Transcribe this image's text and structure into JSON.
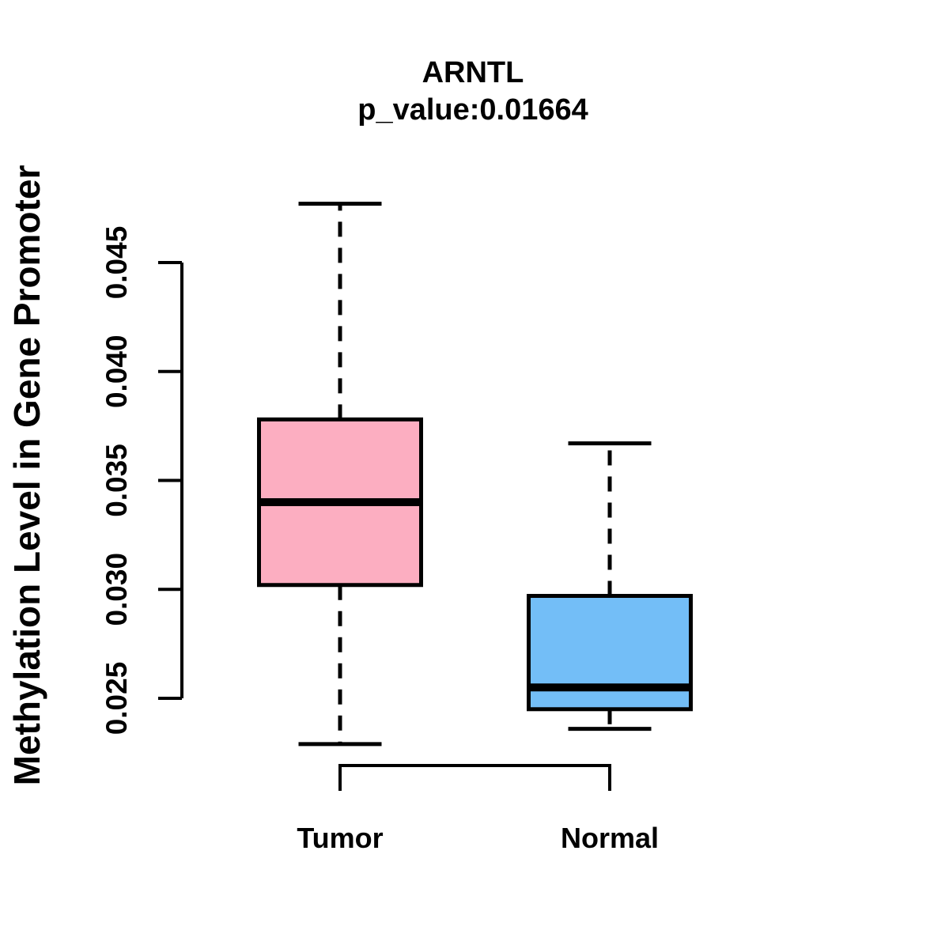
{
  "page": {
    "background": "#FFFFFF",
    "text_color": "#000000"
  },
  "chart_data": {
    "type": "boxplot",
    "title": "ARNTL",
    "subtitle": "p_value:0.01664",
    "p_value": 0.01664,
    "ylabel": "Methylation Level in Gene Promoter",
    "xlabel": "",
    "categories": [
      "Tumor",
      "Normal"
    ],
    "yticks": [
      0.025,
      0.03,
      0.035,
      0.04,
      0.045
    ],
    "ytick_labels": [
      "0.025",
      "0.030",
      "0.035",
      "0.040",
      "0.045"
    ],
    "axis_range": [
      0.025,
      0.045
    ],
    "grid": false,
    "legend": "none",
    "stroke_color": "#000000",
    "whisker_style": "dashed",
    "series": [
      {
        "name": "Tumor",
        "fill": "#FCAEC1",
        "lower_whisker": 0.0229,
        "q1": 0.0302,
        "median": 0.034,
        "q3": 0.0378,
        "upper_whisker": 0.0477,
        "outliers": []
      },
      {
        "name": "Normal",
        "fill": "#73BEF7",
        "lower_whisker": 0.0236,
        "q1": 0.0245,
        "median": 0.0255,
        "q3": 0.0297,
        "upper_whisker": 0.0367,
        "outliers": []
      }
    ]
  }
}
